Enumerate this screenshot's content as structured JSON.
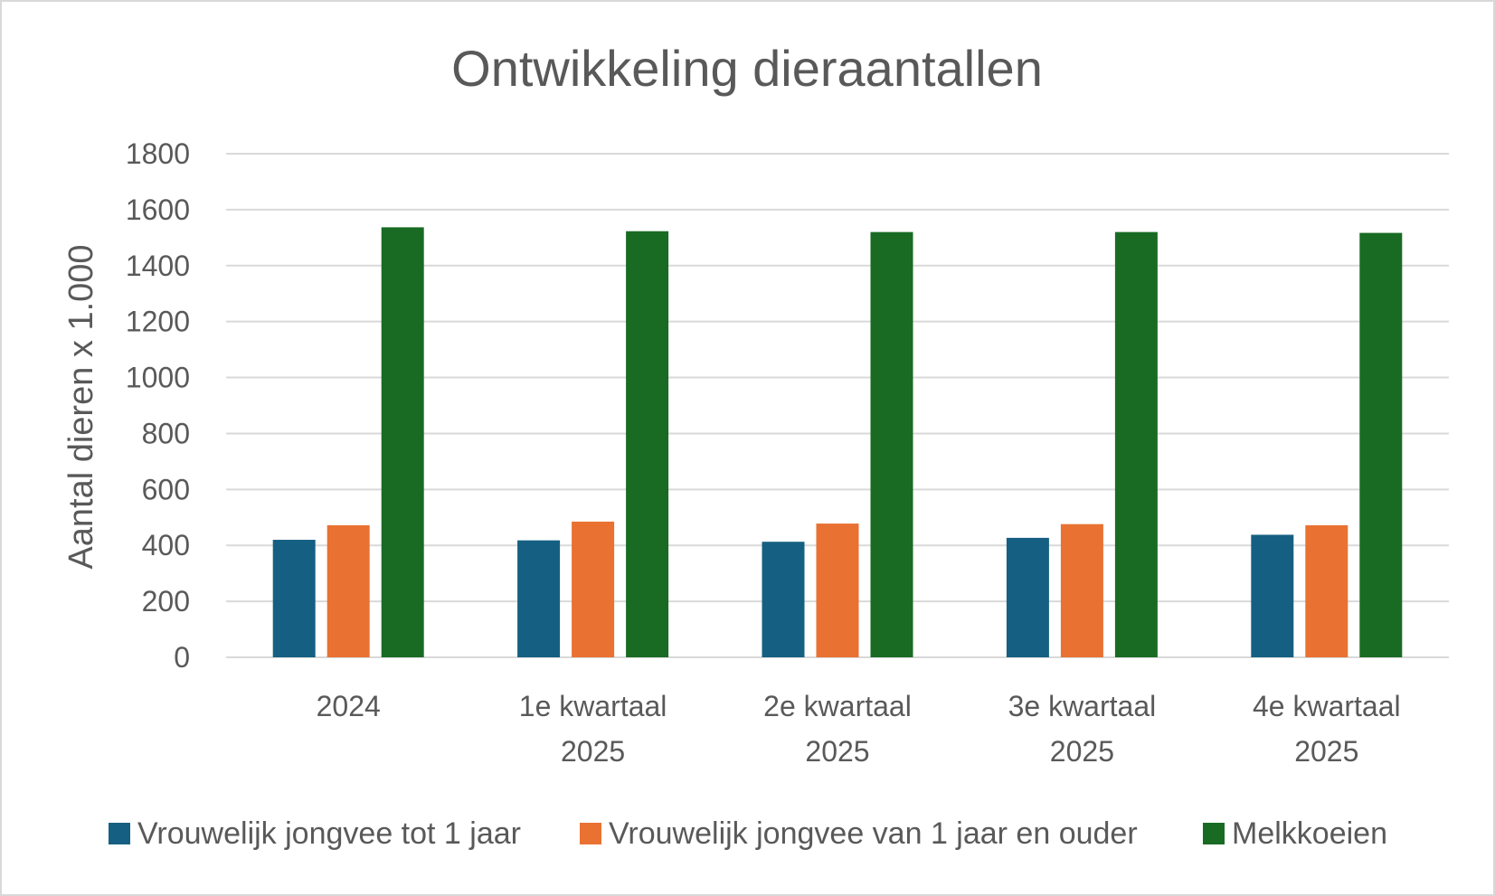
{
  "chart_data": {
    "type": "bar",
    "title": "Ontwikkeling dieraantallen",
    "xlabel": "",
    "ylabel": "Aantal dieren x 1.000",
    "ylim": [
      0,
      1800
    ],
    "yticks": [
      0,
      200,
      400,
      600,
      800,
      1000,
      1200,
      1400,
      1600,
      1800
    ],
    "grid": true,
    "legend_position": "bottom",
    "categories": [
      [
        "2024"
      ],
      [
        "1e kwartaal",
        "2025"
      ],
      [
        "2e kwartaal",
        "2025"
      ],
      [
        "3e kwartaal",
        "2025"
      ],
      [
        "4e kwartaal",
        "2025"
      ]
    ],
    "series": [
      {
        "name": "Vrouwelijk jongvee tot 1 jaar",
        "color": "#156082",
        "values": [
          420,
          418,
          413,
          427,
          438
        ]
      },
      {
        "name": "Vrouwelijk jongvee van 1 jaar en ouder",
        "color": "#e97132",
        "values": [
          472,
          485,
          478,
          476,
          472
        ]
      },
      {
        "name": "Melkkoeien",
        "color": "#196b24",
        "values": [
          1537,
          1523,
          1520,
          1520,
          1517
        ]
      }
    ]
  }
}
